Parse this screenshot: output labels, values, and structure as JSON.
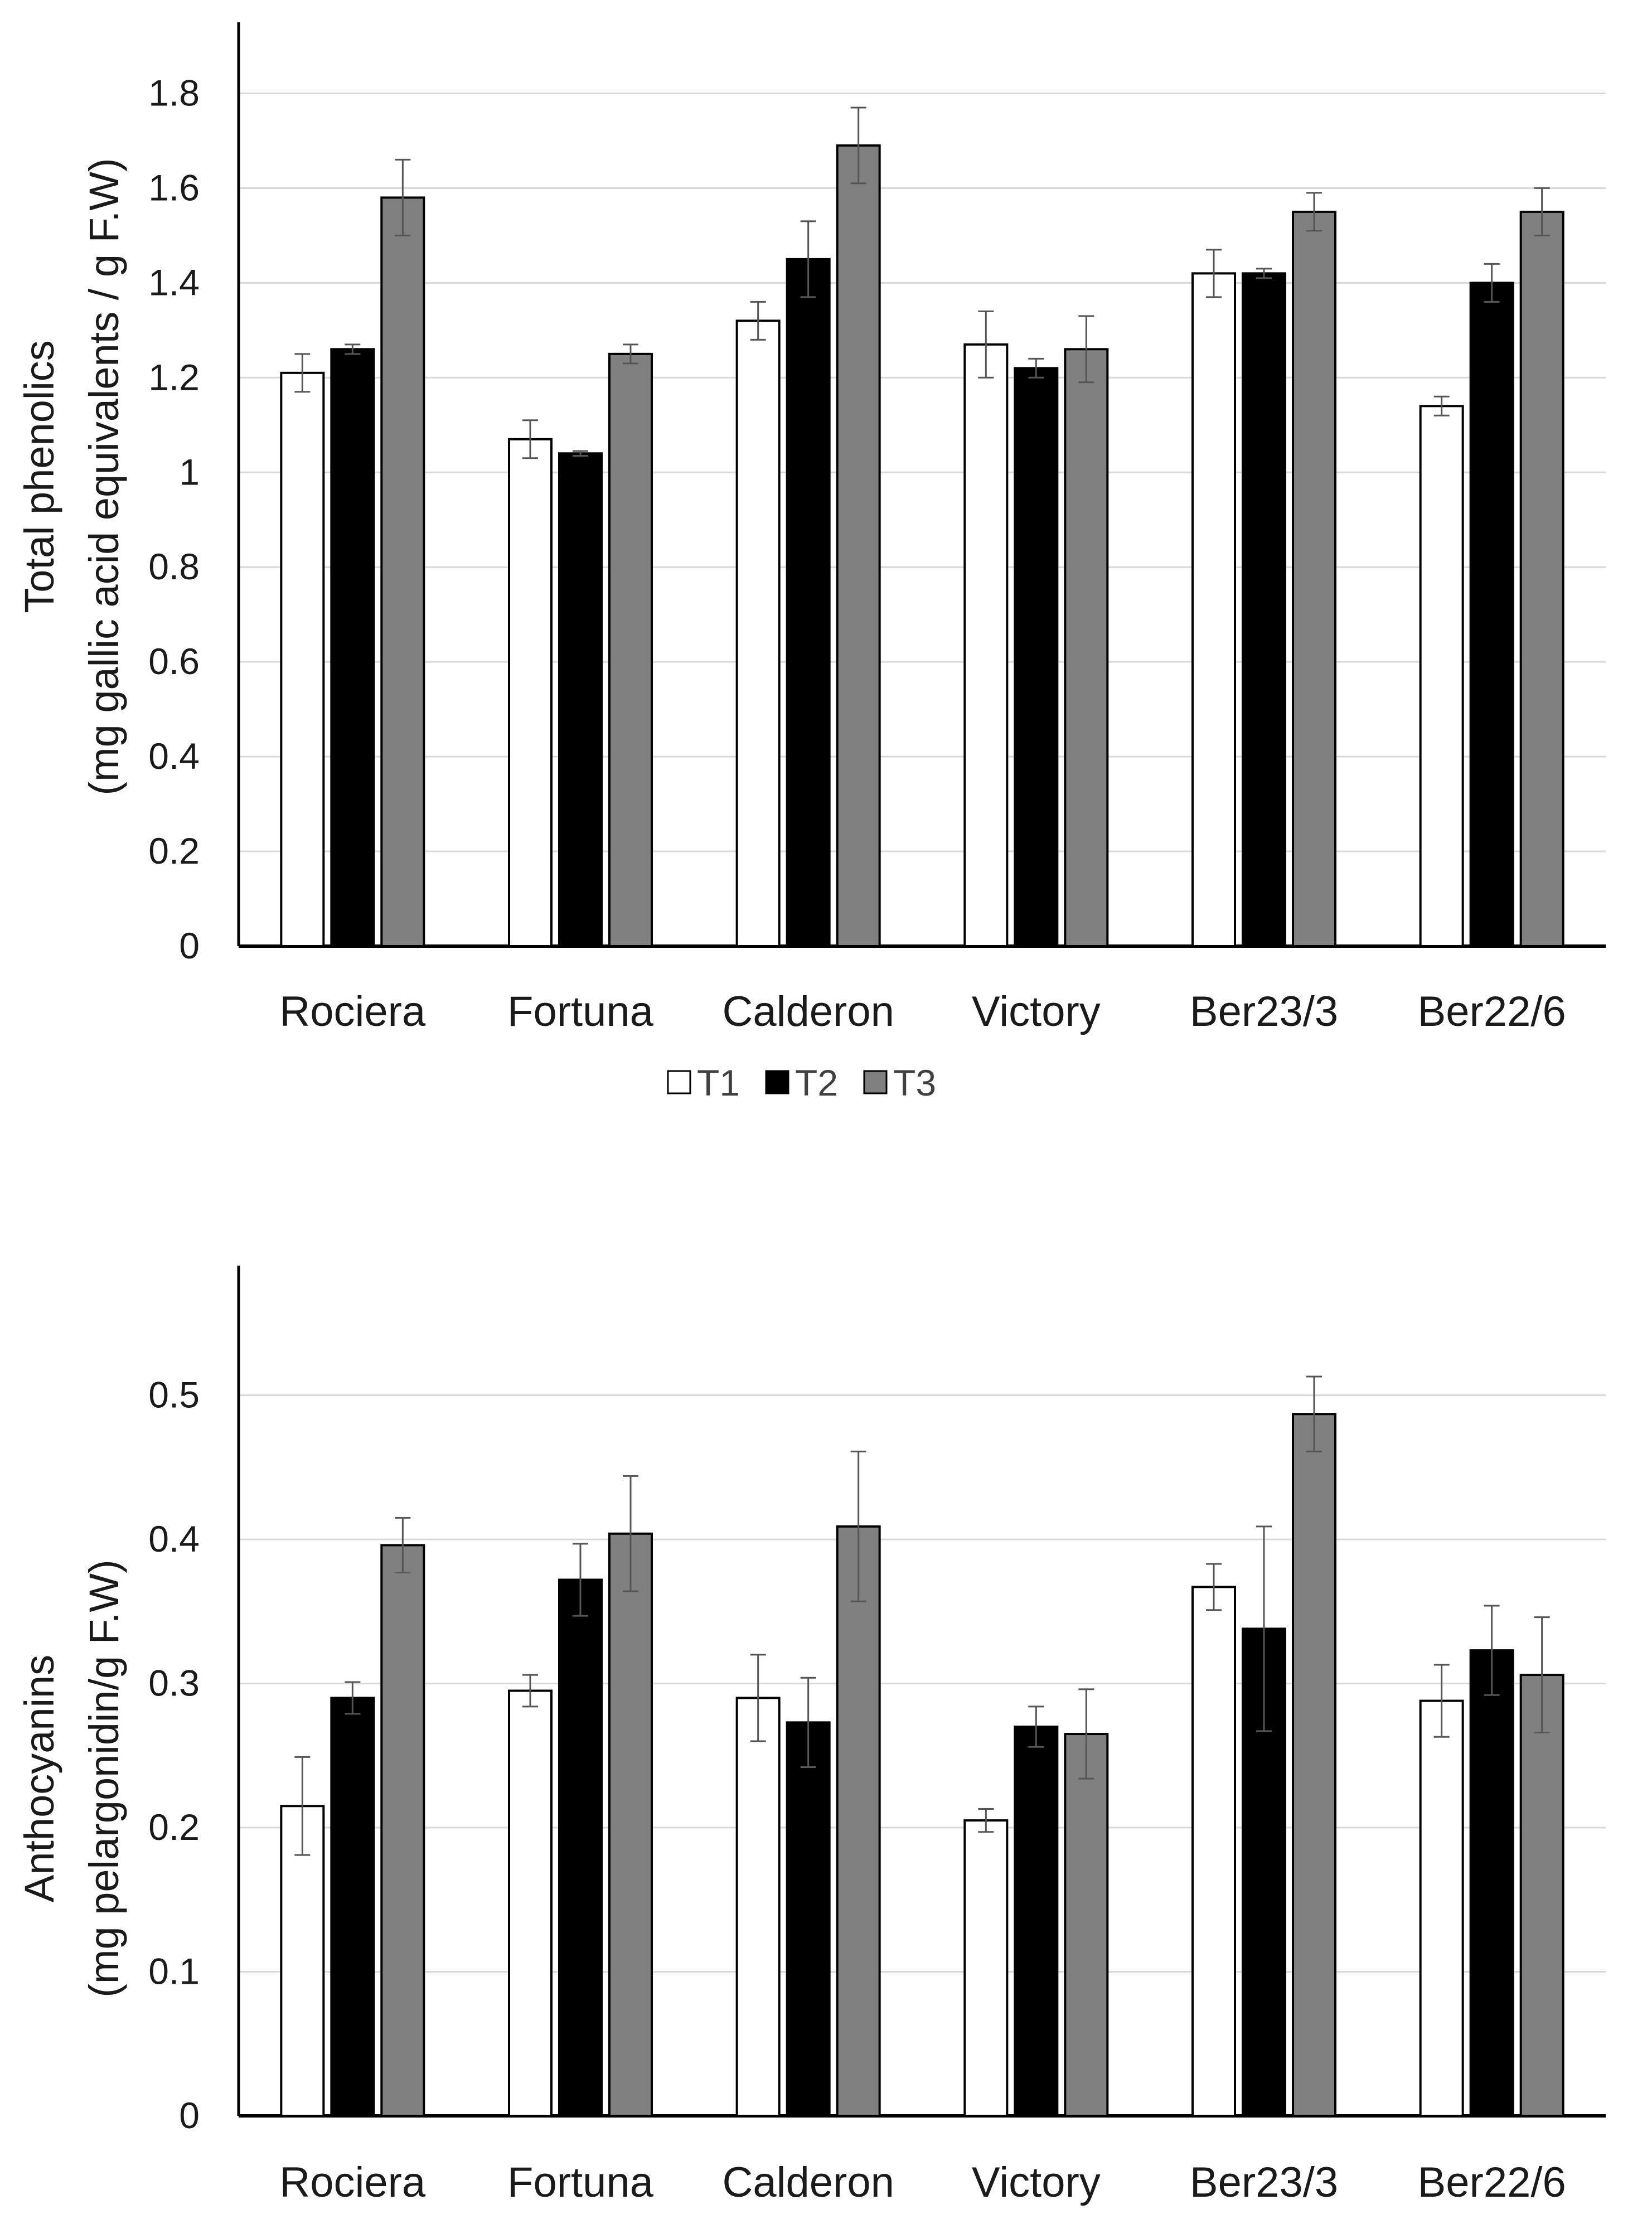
{
  "chart_data": [
    {
      "type": "bar",
      "title": "",
      "ylabel_line1": "Total phenolics",
      "ylabel_line2": "(mg gallic acid equivalents / g F.W)",
      "xlabel": "",
      "categories": [
        "Rociera",
        "Fortuna",
        "Calderon",
        "Victory",
        "Ber23/3",
        "Ber22/6"
      ],
      "ylim": [
        0,
        1.95
      ],
      "yticks": [
        0,
        0.2,
        0.4,
        0.6,
        0.8,
        1,
        1.2,
        1.4,
        1.6,
        1.8
      ],
      "ytick_labels": [
        "0",
        "0.2",
        "0.4",
        "0.6",
        "0.8",
        "1",
        "1.2",
        "1.4",
        "1.6",
        "1.8"
      ],
      "grid": true,
      "legend_position": "bottom-center",
      "series": [
        {
          "name": "T1",
          "color": "#ffffff",
          "values": [
            1.21,
            1.07,
            1.32,
            1.27,
            1.42,
            1.14
          ],
          "errors": [
            0.04,
            0.04,
            0.04,
            0.07,
            0.05,
            0.02
          ]
        },
        {
          "name": "T2",
          "color": "#000000",
          "values": [
            1.26,
            1.04,
            1.45,
            1.22,
            1.42,
            1.4
          ],
          "errors": [
            0.01,
            0.005,
            0.08,
            0.02,
            0.01,
            0.04
          ]
        },
        {
          "name": "T3",
          "color": "#808080",
          "values": [
            1.58,
            1.25,
            1.69,
            1.26,
            1.55,
            1.55
          ],
          "errors": [
            0.08,
            0.02,
            0.08,
            0.07,
            0.04,
            0.05
          ]
        }
      ]
    },
    {
      "type": "bar",
      "title": "",
      "ylabel_line1": "Anthocyanins",
      "ylabel_line2": "(mg pelargonidin/g F.W)",
      "xlabel": "",
      "categories": [
        "Rociera",
        "Fortuna",
        "Calderon",
        "Victory",
        "Ber23/3",
        "Ber22/6"
      ],
      "ylim": [
        0,
        0.59
      ],
      "yticks": [
        0,
        0.1,
        0.2,
        0.3,
        0.4,
        0.5
      ],
      "ytick_labels": [
        "0",
        "0.1",
        "0.2",
        "0.3",
        "0.4",
        "0.5"
      ],
      "grid": true,
      "legend_position": "none",
      "series": [
        {
          "name": "T1",
          "color": "#ffffff",
          "values": [
            0.215,
            0.295,
            0.29,
            0.205,
            0.367,
            0.288
          ],
          "errors": [
            0.034,
            0.011,
            0.03,
            0.008,
            0.016,
            0.025
          ]
        },
        {
          "name": "T2",
          "color": "#000000",
          "values": [
            0.29,
            0.372,
            0.273,
            0.27,
            0.338,
            0.323
          ],
          "errors": [
            0.011,
            0.025,
            0.031,
            0.014,
            0.071,
            0.031
          ]
        },
        {
          "name": "T3",
          "color": "#808080",
          "values": [
            0.396,
            0.404,
            0.409,
            0.265,
            0.487,
            0.306
          ],
          "errors": [
            0.019,
            0.04,
            0.052,
            0.031,
            0.026,
            0.04
          ]
        }
      ]
    }
  ]
}
